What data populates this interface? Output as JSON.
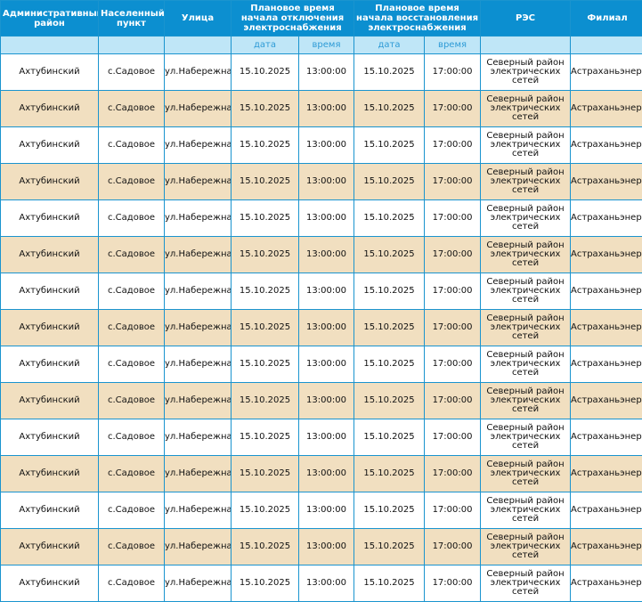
{
  "headers": {
    "district": "Административный район",
    "settlement": "Населенный пункт",
    "street": "Улица",
    "off_time": "Плановое время начала отключения электроснабжения",
    "on_time": "Плановое время начала восстановления электроснабжения",
    "res": "РЭС",
    "branch": "Филиал"
  },
  "subheaders": {
    "off_date": "дата",
    "off_time": "время",
    "on_date": "дата",
    "on_time": "время"
  },
  "rows": [
    {
      "district": "Ахтубинский",
      "settlement": "с.Садовое",
      "street": "ул.Набережная",
      "off_date": "15.10.2025",
      "off_time": "13:00:00",
      "on_date": "15.10.2025",
      "on_time": "17:00:00",
      "res": "Северный район электрических сетей",
      "branch": "Астраханьэнерго"
    },
    {
      "district": "Ахтубинский",
      "settlement": "с.Садовое",
      "street": "ул.Набережная",
      "off_date": "15.10.2025",
      "off_time": "13:00:00",
      "on_date": "15.10.2025",
      "on_time": "17:00:00",
      "res": "Северный район электрических сетей",
      "branch": "Астраханьэнерго"
    },
    {
      "district": "Ахтубинский",
      "settlement": "с.Садовое",
      "street": "ул.Набережная",
      "off_date": "15.10.2025",
      "off_time": "13:00:00",
      "on_date": "15.10.2025",
      "on_time": "17:00:00",
      "res": "Северный район электрических сетей",
      "branch": "Астраханьэнерго"
    },
    {
      "district": "Ахтубинский",
      "settlement": "с.Садовое",
      "street": "ул.Набережная",
      "off_date": "15.10.2025",
      "off_time": "13:00:00",
      "on_date": "15.10.2025",
      "on_time": "17:00:00",
      "res": "Северный район электрических сетей",
      "branch": "Астраханьэнерго"
    },
    {
      "district": "Ахтубинский",
      "settlement": "с.Садовое",
      "street": "ул.Набережная",
      "off_date": "15.10.2025",
      "off_time": "13:00:00",
      "on_date": "15.10.2025",
      "on_time": "17:00:00",
      "res": "Северный район электрических сетей",
      "branch": "Астраханьэнерго"
    },
    {
      "district": "Ахтубинский",
      "settlement": "с.Садовое",
      "street": "ул.Набережная",
      "off_date": "15.10.2025",
      "off_time": "13:00:00",
      "on_date": "15.10.2025",
      "on_time": "17:00:00",
      "res": "Северный район электрических сетей",
      "branch": "Астраханьэнерго"
    },
    {
      "district": "Ахтубинский",
      "settlement": "с.Садовое",
      "street": "ул.Набережная",
      "off_date": "15.10.2025",
      "off_time": "13:00:00",
      "on_date": "15.10.2025",
      "on_time": "17:00:00",
      "res": "Северный район электрических сетей",
      "branch": "Астраханьэнерго"
    },
    {
      "district": "Ахтубинский",
      "settlement": "с.Садовое",
      "street": "ул.Набережная",
      "off_date": "15.10.2025",
      "off_time": "13:00:00",
      "on_date": "15.10.2025",
      "on_time": "17:00:00",
      "res": "Северный район электрических сетей",
      "branch": "Астраханьэнерго"
    },
    {
      "district": "Ахтубинский",
      "settlement": "с.Садовое",
      "street": "ул.Набережная",
      "off_date": "15.10.2025",
      "off_time": "13:00:00",
      "on_date": "15.10.2025",
      "on_time": "17:00:00",
      "res": "Северный район электрических сетей",
      "branch": "Астраханьэнерго"
    },
    {
      "district": "Ахтубинский",
      "settlement": "с.Садовое",
      "street": "ул.Набережная",
      "off_date": "15.10.2025",
      "off_time": "13:00:00",
      "on_date": "15.10.2025",
      "on_time": "17:00:00",
      "res": "Северный район электрических сетей",
      "branch": "Астраханьэнерго"
    },
    {
      "district": "Ахтубинский",
      "settlement": "с.Садовое",
      "street": "ул.Набережная",
      "off_date": "15.10.2025",
      "off_time": "13:00:00",
      "on_date": "15.10.2025",
      "on_time": "17:00:00",
      "res": "Северный район электрических сетей",
      "branch": "Астраханьэнерго"
    },
    {
      "district": "Ахтубинский",
      "settlement": "с.Садовое",
      "street": "ул.Набережная",
      "off_date": "15.10.2025",
      "off_time": "13:00:00",
      "on_date": "15.10.2025",
      "on_time": "17:00:00",
      "res": "Северный район электрических сетей",
      "branch": "Астраханьэнерго"
    },
    {
      "district": "Ахтубинский",
      "settlement": "с.Садовое",
      "street": "ул.Набережная",
      "off_date": "15.10.2025",
      "off_time": "13:00:00",
      "on_date": "15.10.2025",
      "on_time": "17:00:00",
      "res": "Северный район электрических сетей",
      "branch": "Астраханьэнерго"
    },
    {
      "district": "Ахтубинский",
      "settlement": "с.Садовое",
      "street": "ул.Набережная",
      "off_date": "15.10.2025",
      "off_time": "13:00:00",
      "on_date": "15.10.2025",
      "on_time": "17:00:00",
      "res": "Северный район электрических сетей",
      "branch": "Астраханьэнерго"
    },
    {
      "district": "Ахтубинский",
      "settlement": "с.Садовое",
      "street": "ул.Набережная",
      "off_date": "15.10.2025",
      "off_time": "13:00:00",
      "on_date": "15.10.2025",
      "on_time": "17:00:00",
      "res": "Северный район электрических сетей",
      "branch": "Астраханьэнерго"
    }
  ]
}
